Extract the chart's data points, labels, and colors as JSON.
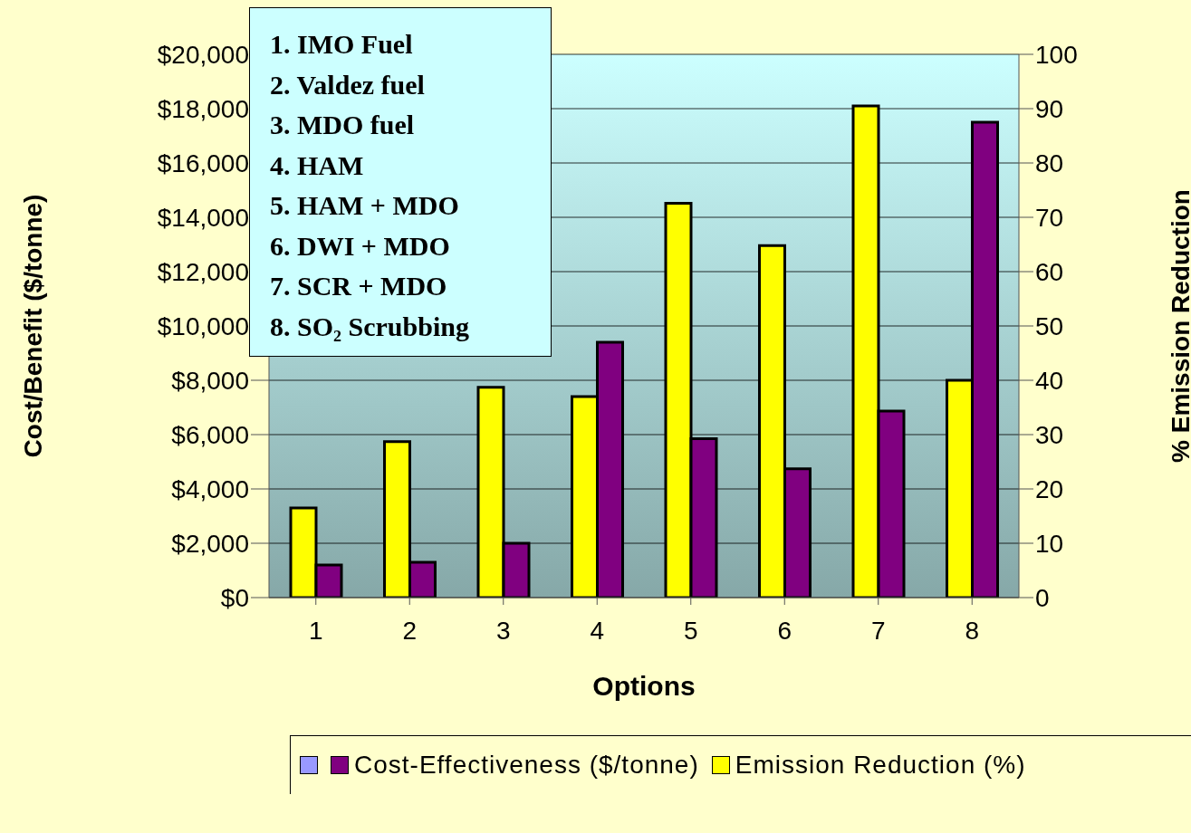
{
  "chart_data": {
    "type": "bar",
    "xlabel": "Options",
    "ylabel": "Cost/Benefit ($/tonne)",
    "y2label": "% Emission Reduction",
    "categories": [
      "1",
      "2",
      "3",
      "4",
      "5",
      "6",
      "7",
      "8"
    ],
    "series": [
      {
        "name": "Emission Reduction (%)",
        "color": "#ffff00",
        "axis": "y2",
        "values": [
          16.5,
          28.7,
          38.7,
          37,
          72.6,
          64.8,
          90.5,
          40
        ]
      },
      {
        "name": "Cost-Effectiveness ($/tonne)",
        "color": "#800080",
        "values": [
          1200,
          1300,
          2000,
          9400,
          5850,
          4740,
          6870,
          17500
        ]
      }
    ],
    "ylim": [
      0,
      20000
    ],
    "yticks": [
      {
        "value": 0,
        "label": "$0"
      },
      {
        "value": 2000,
        "label": "$2,000"
      },
      {
        "value": 4000,
        "label": "$4,000"
      },
      {
        "value": 6000,
        "label": "$6,000"
      },
      {
        "value": 8000,
        "label": "$8,000"
      },
      {
        "value": 10000,
        "label": "$10,000"
      },
      {
        "value": 12000,
        "label": "$12,000"
      },
      {
        "value": 14000,
        "label": "$14,000"
      },
      {
        "value": 16000,
        "label": "$16,000"
      },
      {
        "value": 18000,
        "label": "$18,000"
      },
      {
        "value": 20000,
        "label": "$20,000"
      }
    ],
    "y2lim": [
      0,
      100
    ],
    "y2ticks": [
      0,
      10,
      20,
      30,
      40,
      50,
      60,
      70,
      80,
      90,
      100
    ],
    "annotations": [
      "1. IMO Fuel",
      "2. Valdez fuel",
      "3. MDO fuel",
      "4. HAM",
      "5. HAM + MDO",
      "6. DWI + MDO",
      "7. SCR + MDO",
      "8. SO₂ Scrubbing"
    ],
    "grid": "y",
    "legend": "bottom"
  }
}
